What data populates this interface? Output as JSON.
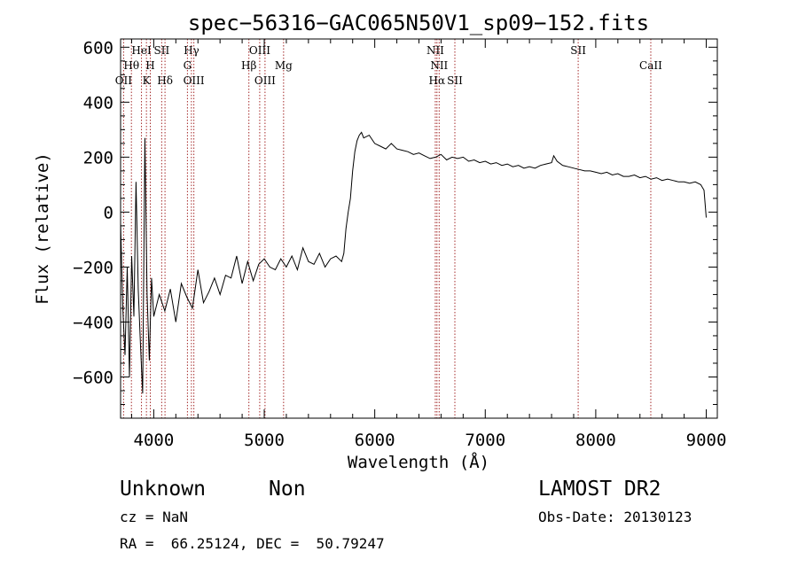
{
  "chart_data": {
    "type": "line",
    "title": "spec−56316−GAC065N50V1_sp09−152.fits",
    "xlabel": "Wavelength (Å)",
    "ylabel": "Flux (relative)",
    "xlim": [
      3700,
      9100
    ],
    "ylim": [
      -750,
      630
    ],
    "x_ticks": [
      4000,
      5000,
      6000,
      7000,
      8000,
      9000
    ],
    "y_ticks": [
      {
        "value": -600,
        "label": "−600"
      },
      {
        "value": -400,
        "label": "−400"
      },
      {
        "value": -200,
        "label": "−200"
      },
      {
        "value": 0,
        "label": "0"
      },
      {
        "value": 200,
        "label": "200"
      },
      {
        "value": 400,
        "label": "400"
      },
      {
        "value": 600,
        "label": "600"
      }
    ],
    "series": [
      {
        "color": "#000000",
        "x": [
          3700,
          3720,
          3740,
          3760,
          3780,
          3800,
          3820,
          3840,
          3860,
          3880,
          3900,
          3920,
          3940,
          3960,
          3980,
          4000,
          4050,
          4100,
          4150,
          4200,
          4250,
          4300,
          4350,
          4400,
          4450,
          4500,
          4550,
          4600,
          4650,
          4700,
          4750,
          4800,
          4850,
          4900,
          4950,
          5000,
          5050,
          5100,
          5150,
          5200,
          5250,
          5300,
          5350,
          5400,
          5450,
          5500,
          5550,
          5600,
          5650,
          5700,
          5720,
          5740,
          5760,
          5780,
          5800,
          5820,
          5840,
          5860,
          5880,
          5900,
          5950,
          6000,
          6050,
          6100,
          6150,
          6200,
          6250,
          6300,
          6350,
          6400,
          6450,
          6500,
          6550,
          6600,
          6650,
          6700,
          6750,
          6800,
          6850,
          6900,
          6950,
          7000,
          7050,
          7100,
          7150,
          7200,
          7250,
          7300,
          7350,
          7400,
          7450,
          7500,
          7550,
          7600,
          7620,
          7650,
          7700,
          7750,
          7800,
          7850,
          7900,
          7950,
          8000,
          8050,
          8100,
          8150,
          8200,
          8250,
          8300,
          8350,
          8400,
          8450,
          8500,
          8550,
          8600,
          8650,
          8700,
          8750,
          8800,
          8850,
          8900,
          8950,
          8980,
          9000
        ],
        "y": [
          -40,
          -350,
          -520,
          -200,
          -600,
          -160,
          -380,
          110,
          -280,
          -480,
          -660,
          270,
          -300,
          -540,
          -240,
          -380,
          -300,
          -360,
          -280,
          -400,
          -260,
          -310,
          -350,
          -210,
          -330,
          -290,
          -240,
          -300,
          -230,
          -240,
          -160,
          -260,
          -180,
          -250,
          -190,
          -170,
          -200,
          -210,
          -170,
          -200,
          -160,
          -210,
          -130,
          -180,
          -190,
          -150,
          -200,
          -170,
          -160,
          -180,
          -150,
          -60,
          0,
          50,
          150,
          220,
          260,
          280,
          290,
          270,
          280,
          250,
          240,
          230,
          250,
          230,
          225,
          220,
          210,
          215,
          205,
          195,
          200,
          210,
          190,
          200,
          195,
          200,
          185,
          190,
          180,
          185,
          175,
          180,
          170,
          175,
          165,
          170,
          160,
          165,
          160,
          170,
          175,
          180,
          205,
          185,
          170,
          165,
          160,
          155,
          150,
          150,
          145,
          140,
          145,
          135,
          140,
          130,
          130,
          135,
          125,
          130,
          120,
          125,
          115,
          120,
          115,
          110,
          110,
          105,
          110,
          100,
          80,
          -20
        ]
      }
    ],
    "line_labels": [
      {
        "wavelength": 3727,
        "label": "OII",
        "row": 3
      },
      {
        "wavelength": 3798,
        "label": "Hθ",
        "row": 2
      },
      {
        "wavelength": 3889,
        "label": "HeI",
        "row": 1
      },
      {
        "wavelength": 3934,
        "label": "K",
        "row": 3
      },
      {
        "wavelength": 3969,
        "label": "H",
        "row": 2
      },
      {
        "wavelength": 4072,
        "label": "SII",
        "row": 1
      },
      {
        "wavelength": 4102,
        "label": "Hδ",
        "row": 3
      },
      {
        "wavelength": 4305,
        "label": "G",
        "row": 2
      },
      {
        "wavelength": 4341,
        "label": "Hγ",
        "row": 1
      },
      {
        "wavelength": 4363,
        "label": "OIII",
        "row": 3
      },
      {
        "wavelength": 4861,
        "label": "Hβ",
        "row": 2
      },
      {
        "wavelength": 4959,
        "label": "OIII",
        "row": 1
      },
      {
        "wavelength": 5007,
        "label": "OIII",
        "row": 3
      },
      {
        "wavelength": 5175,
        "label": "Mg",
        "row": 2
      },
      {
        "wavelength": 6548,
        "label": "NII",
        "row": 1
      },
      {
        "wavelength": 6563,
        "label": "Hα",
        "row": 3
      },
      {
        "wavelength": 6583,
        "label": "NII",
        "row": 2
      },
      {
        "wavelength": 6725,
        "label": "SII",
        "row": 3
      },
      {
        "wavelength": 7841,
        "label": "SII",
        "row": 1
      },
      {
        "wavelength": 8498,
        "label": "CaII",
        "row": 2
      }
    ],
    "grid": false,
    "legend": "none"
  },
  "footer": {
    "classification": "Unknown",
    "subclass": "Non",
    "survey": "LAMOST DR2",
    "cz": "cz = NaN",
    "obs_date": "Obs-Date: 20130123",
    "coords": "RA =  66.25124, DEC =  50.79247"
  }
}
